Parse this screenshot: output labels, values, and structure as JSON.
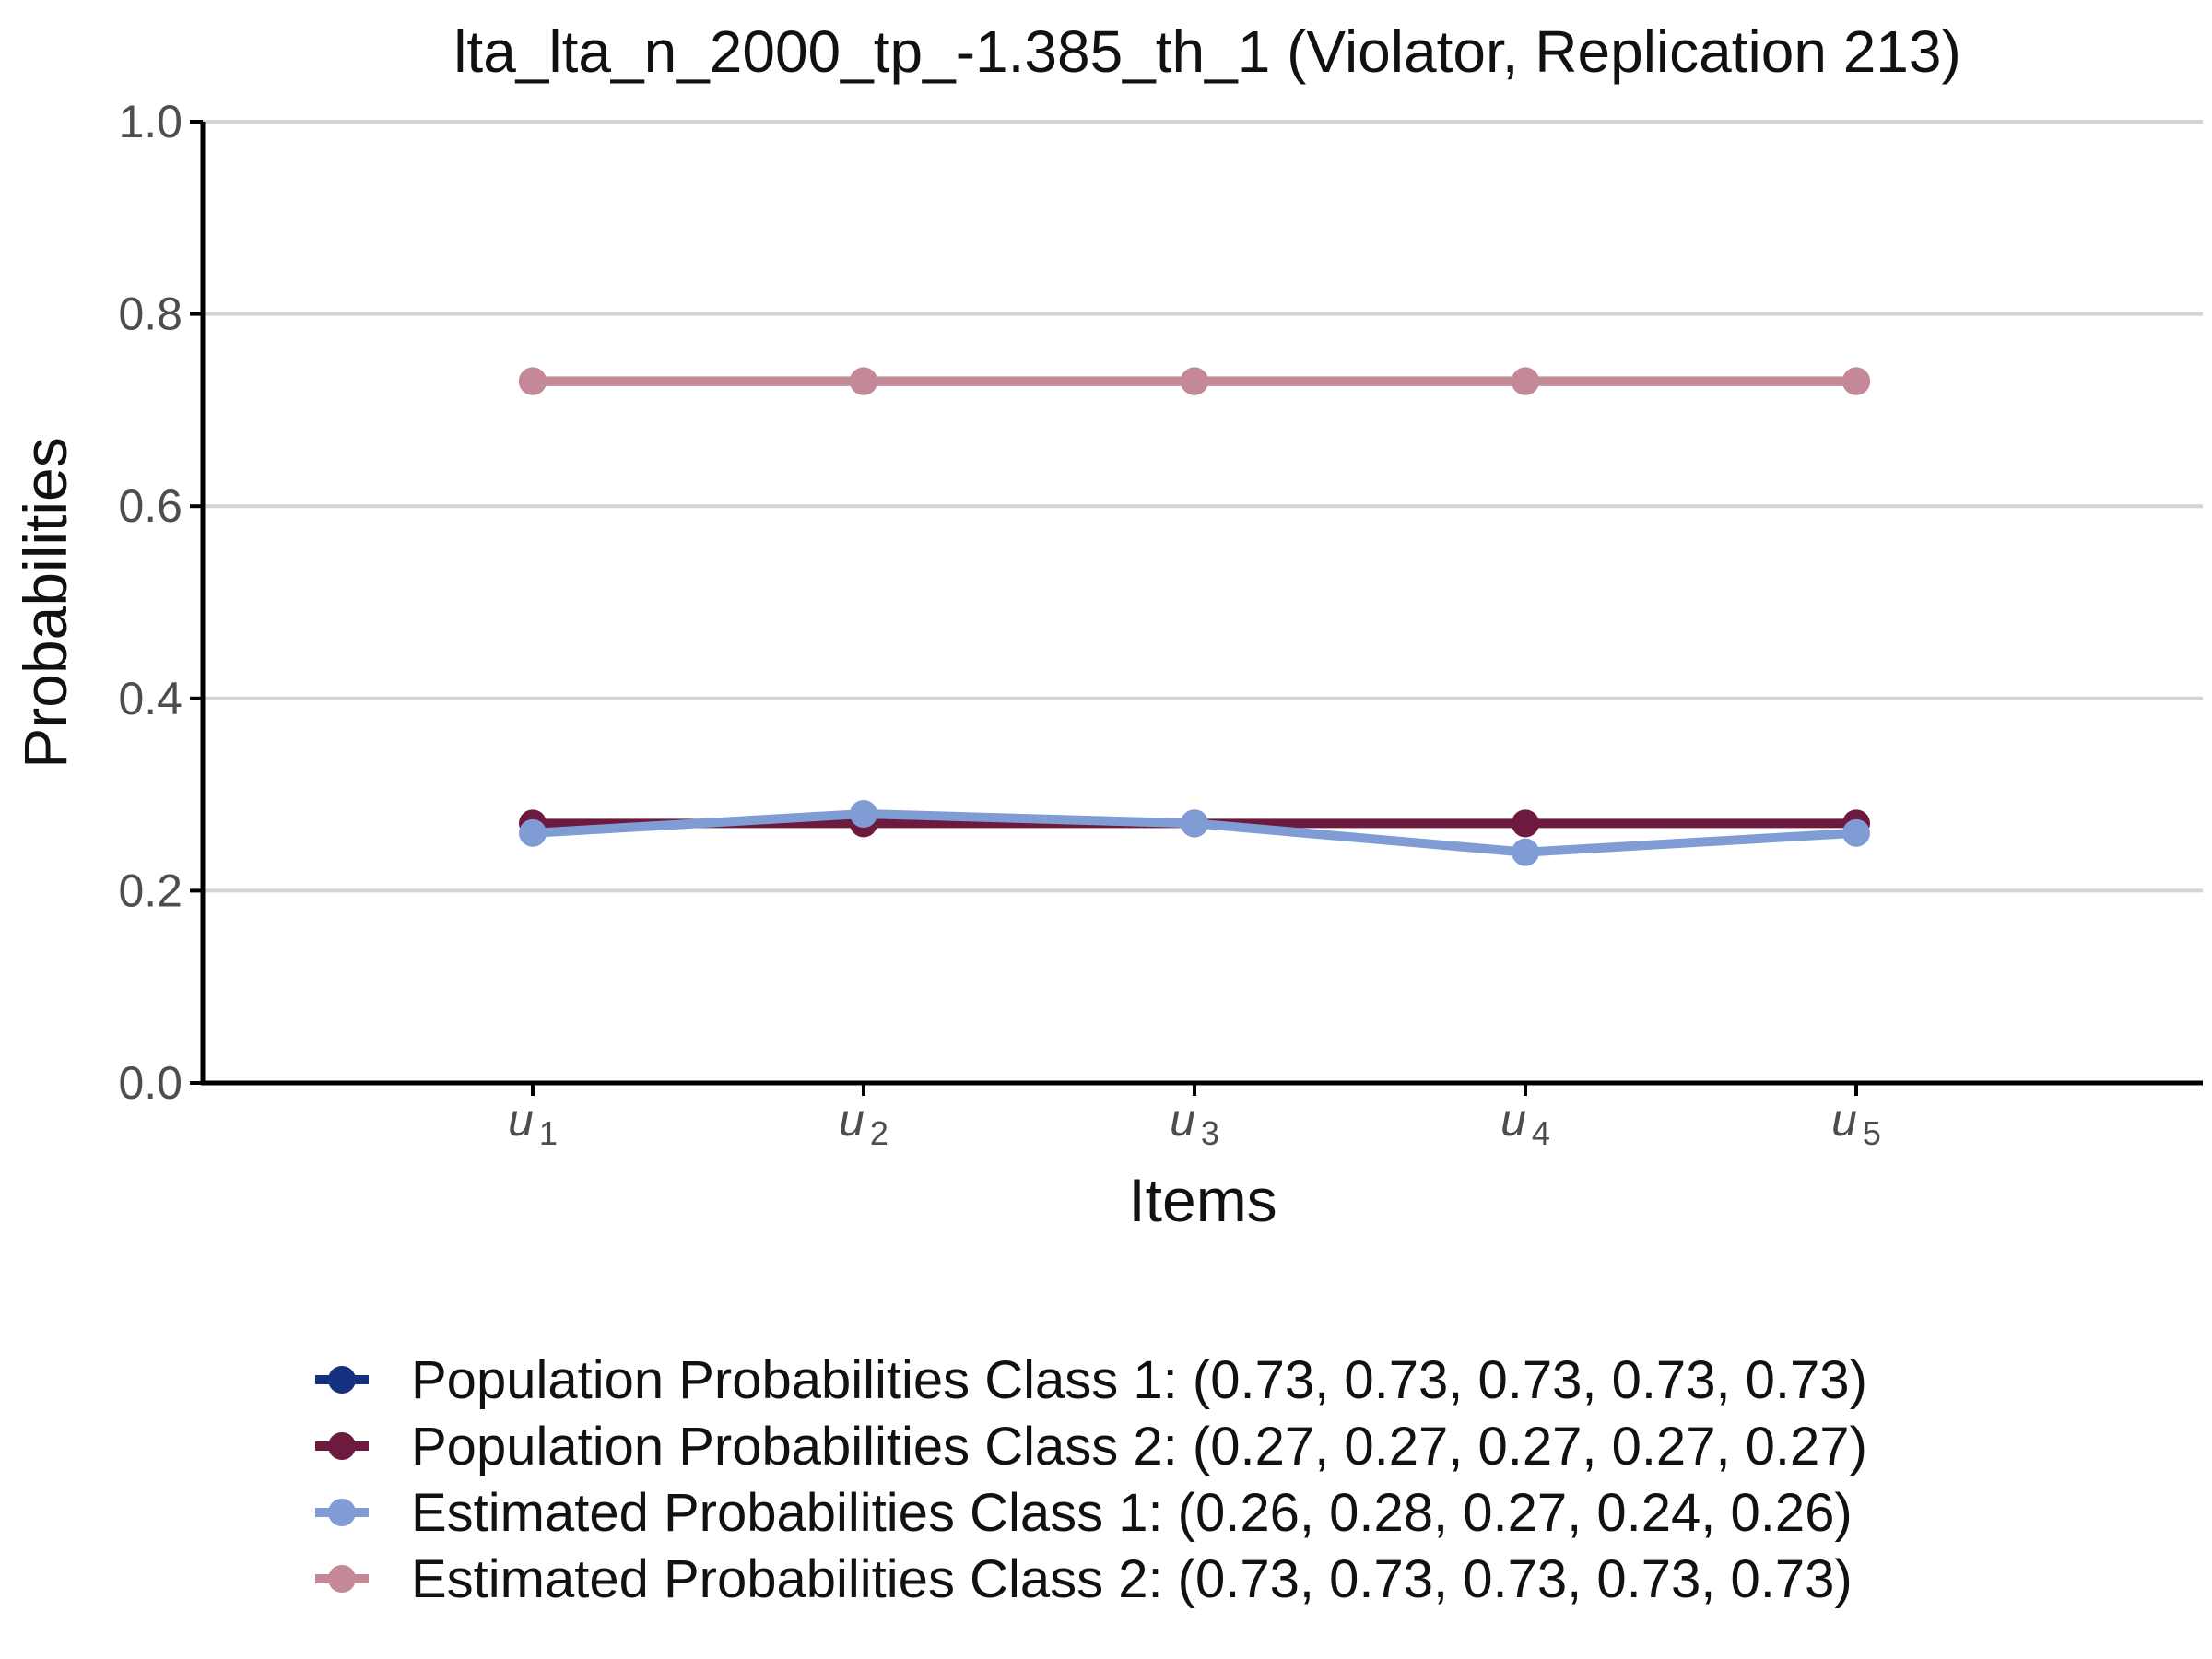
{
  "chart_data": {
    "type": "line",
    "title": "lta_lta_n_2000_tp_-1.385_th_1 (Violator, Replication 213)",
    "xlabel": "Items",
    "ylabel": "Probabilities",
    "ylim": [
      0,
      1
    ],
    "yticks": [
      "0.0",
      "0.2",
      "0.4",
      "0.6",
      "0.8",
      "1.0"
    ],
    "grid": "horizontal",
    "legend_position": "bottom",
    "categories": [
      {
        "base": "u",
        "sub": "1"
      },
      {
        "base": "u",
        "sub": "2"
      },
      {
        "base": "u",
        "sub": "3"
      },
      {
        "base": "u",
        "sub": "4"
      },
      {
        "base": "u",
        "sub": "5"
      }
    ],
    "series": [
      {
        "name": "Population Probabilities Class 1: (0.73, 0.73, 0.73, 0.73, 0.73)",
        "color": "#14307e",
        "values": [
          0.73,
          0.73,
          0.73,
          0.73,
          0.73
        ]
      },
      {
        "name": "Population Probabilities Class 2: (0.27, 0.27, 0.27, 0.27, 0.27)",
        "color": "#6e1a3e",
        "values": [
          0.27,
          0.27,
          0.27,
          0.27,
          0.27
        ]
      },
      {
        "name": "Estimated Probabilities Class 1: (0.26, 0.28, 0.27, 0.24, 0.26)",
        "color": "#7f9dd4",
        "values": [
          0.26,
          0.28,
          0.27,
          0.24,
          0.26
        ]
      },
      {
        "name": "Estimated Probabilities Class 2: (0.73, 0.73, 0.73, 0.73, 0.73)",
        "color": "#c48896",
        "values": [
          0.73,
          0.73,
          0.73,
          0.73,
          0.73
        ]
      }
    ]
  }
}
